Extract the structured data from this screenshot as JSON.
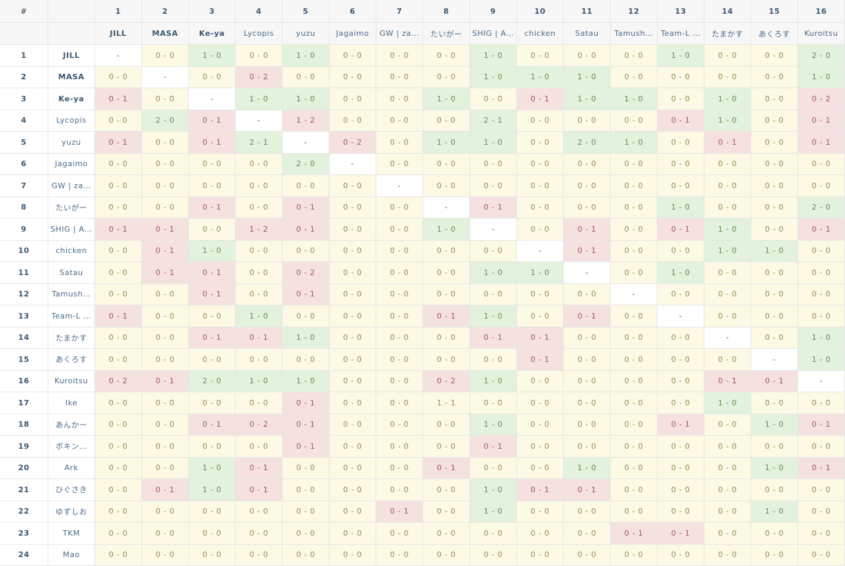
{
  "header": {
    "index": "#"
  },
  "columns": [
    {
      "number": "1",
      "name": "JILL"
    },
    {
      "number": "2",
      "name": "MASA"
    },
    {
      "number": "3",
      "name": "Ke-ya"
    },
    {
      "number": "4",
      "name": "Lycopis"
    },
    {
      "number": "5",
      "name": "yuzu"
    },
    {
      "number": "6",
      "name": "Jagaimo"
    },
    {
      "number": "7",
      "name": "GW | za…"
    },
    {
      "number": "8",
      "name": "たいがー"
    },
    {
      "number": "9",
      "name": "SHIG | A…"
    },
    {
      "number": "10",
      "name": "chicken"
    },
    {
      "number": "11",
      "name": "Satau"
    },
    {
      "number": "12",
      "name": "Tamush…"
    },
    {
      "number": "13",
      "name": "Team-L …"
    },
    {
      "number": "14",
      "name": "たまかす"
    },
    {
      "number": "15",
      "name": "あくろす"
    },
    {
      "number": "16",
      "name": "Kuroitsu"
    }
  ],
  "rows": [
    {
      "number": "1",
      "name": "JILL",
      "cells": [
        "-",
        "0 - 0",
        "1 - 0",
        "0 - 0",
        "1 - 0",
        "0 - 0",
        "0 - 0",
        "0 - 0",
        "1 - 0",
        "0 - 0",
        "0 - 0",
        "0 - 0",
        "1 - 0",
        "0 - 0",
        "0 - 0",
        "2 - 0"
      ]
    },
    {
      "number": "2",
      "name": "MASA",
      "cells": [
        "0 - 0",
        "-",
        "0 - 0",
        "0 - 2",
        "0 - 0",
        "0 - 0",
        "0 - 0",
        "0 - 0",
        "1 - 0",
        "1 - 0",
        "1 - 0",
        "0 - 0",
        "0 - 0",
        "0 - 0",
        "0 - 0",
        "1 - 0"
      ]
    },
    {
      "number": "3",
      "name": "Ke-ya",
      "cells": [
        "0 - 1",
        "0 - 0",
        "-",
        "1 - 0",
        "1 - 0",
        "0 - 0",
        "0 - 0",
        "1 - 0",
        "0 - 0",
        "0 - 1",
        "1 - 0",
        "1 - 0",
        "0 - 0",
        "1 - 0",
        "0 - 0",
        "0 - 2"
      ]
    },
    {
      "number": "4",
      "name": "Lycopis",
      "cells": [
        "0 - 0",
        "2 - 0",
        "0 - 1",
        "-",
        "1 - 2",
        "0 - 0",
        "0 - 0",
        "0 - 0",
        "2 - 1",
        "0 - 0",
        "0 - 0",
        "0 - 0",
        "0 - 1",
        "1 - 0",
        "0 - 0",
        "0 - 1"
      ]
    },
    {
      "number": "5",
      "name": "yuzu",
      "cells": [
        "0 - 1",
        "0 - 0",
        "0 - 1",
        "2 - 1",
        "-",
        "0 - 2",
        "0 - 0",
        "1 - 0",
        "1 - 0",
        "0 - 0",
        "2 - 0",
        "1 - 0",
        "0 - 0",
        "0 - 1",
        "0 - 0",
        "0 - 1"
      ]
    },
    {
      "number": "6",
      "name": "Jagaimo",
      "cells": [
        "0 - 0",
        "0 - 0",
        "0 - 0",
        "0 - 0",
        "2 - 0",
        "-",
        "0 - 0",
        "0 - 0",
        "0 - 0",
        "0 - 0",
        "0 - 0",
        "0 - 0",
        "0 - 0",
        "0 - 0",
        "0 - 0",
        "0 - 0"
      ]
    },
    {
      "number": "7",
      "name": "GW | za…",
      "cells": [
        "0 - 0",
        "0 - 0",
        "0 - 0",
        "0 - 0",
        "0 - 0",
        "0 - 0",
        "-",
        "0 - 0",
        "0 - 0",
        "0 - 0",
        "0 - 0",
        "0 - 0",
        "0 - 0",
        "0 - 0",
        "0 - 0",
        "0 - 0"
      ]
    },
    {
      "number": "8",
      "name": "たいがー",
      "cells": [
        "0 - 0",
        "0 - 0",
        "0 - 1",
        "0 - 0",
        "0 - 1",
        "0 - 0",
        "0 - 0",
        "-",
        "0 - 1",
        "0 - 0",
        "0 - 0",
        "0 - 0",
        "1 - 0",
        "0 - 0",
        "0 - 0",
        "2 - 0"
      ]
    },
    {
      "number": "9",
      "name": "SHIG | A…",
      "cells": [
        "0 - 1",
        "0 - 1",
        "0 - 0",
        "1 - 2",
        "0 - 1",
        "0 - 0",
        "0 - 0",
        "1 - 0",
        "-",
        "0 - 0",
        "0 - 1",
        "0 - 0",
        "0 - 1",
        "1 - 0",
        "0 - 0",
        "0 - 1"
      ]
    },
    {
      "number": "10",
      "name": "chicken",
      "cells": [
        "0 - 0",
        "0 - 1",
        "1 - 0",
        "0 - 0",
        "0 - 0",
        "0 - 0",
        "0 - 0",
        "0 - 0",
        "0 - 0",
        "-",
        "0 - 1",
        "0 - 0",
        "0 - 0",
        "1 - 0",
        "1 - 0",
        "0 - 0"
      ]
    },
    {
      "number": "11",
      "name": "Satau",
      "cells": [
        "0 - 0",
        "0 - 1",
        "0 - 1",
        "0 - 0",
        "0 - 2",
        "0 - 0",
        "0 - 0",
        "0 - 0",
        "1 - 0",
        "1 - 0",
        "-",
        "0 - 0",
        "1 - 0",
        "0 - 0",
        "0 - 0",
        "0 - 0"
      ]
    },
    {
      "number": "12",
      "name": "Tamush…",
      "cells": [
        "0 - 0",
        "0 - 0",
        "0 - 1",
        "0 - 0",
        "0 - 1",
        "0 - 0",
        "0 - 0",
        "0 - 0",
        "0 - 0",
        "0 - 0",
        "0 - 0",
        "-",
        "0 - 0",
        "0 - 0",
        "0 - 0",
        "0 - 0"
      ]
    },
    {
      "number": "13",
      "name": "Team-L …",
      "cells": [
        "0 - 1",
        "0 - 0",
        "0 - 0",
        "1 - 0",
        "0 - 0",
        "0 - 0",
        "0 - 0",
        "0 - 1",
        "1 - 0",
        "0 - 0",
        "0 - 1",
        "0 - 0",
        "-",
        "0 - 0",
        "0 - 0",
        "0 - 0"
      ]
    },
    {
      "number": "14",
      "name": "たまかす",
      "cells": [
        "0 - 0",
        "0 - 0",
        "0 - 1",
        "0 - 1",
        "1 - 0",
        "0 - 0",
        "0 - 0",
        "0 - 0",
        "0 - 1",
        "0 - 1",
        "0 - 0",
        "0 - 0",
        "0 - 0",
        "-",
        "0 - 0",
        "1 - 0"
      ]
    },
    {
      "number": "15",
      "name": "あくろす",
      "cells": [
        "0 - 0",
        "0 - 0",
        "0 - 0",
        "0 - 0",
        "0 - 0",
        "0 - 0",
        "0 - 0",
        "0 - 0",
        "0 - 0",
        "0 - 1",
        "0 - 0",
        "0 - 0",
        "0 - 0",
        "0 - 0",
        "-",
        "1 - 0"
      ]
    },
    {
      "number": "16",
      "name": "Kuroitsu",
      "cells": [
        "0 - 2",
        "0 - 1",
        "2 - 0",
        "1 - 0",
        "1 - 0",
        "0 - 0",
        "0 - 0",
        "0 - 2",
        "1 - 0",
        "0 - 0",
        "0 - 0",
        "0 - 0",
        "0 - 0",
        "0 - 1",
        "0 - 1",
        "-"
      ]
    },
    {
      "number": "17",
      "name": "Ike",
      "cells": [
        "0 - 0",
        "0 - 0",
        "0 - 0",
        "0 - 0",
        "0 - 1",
        "0 - 0",
        "0 - 0",
        "1 - 1",
        "0 - 0",
        "0 - 0",
        "0 - 0",
        "0 - 0",
        "0 - 0",
        "1 - 0",
        "0 - 0",
        "0 - 0"
      ]
    },
    {
      "number": "18",
      "name": "あんかー",
      "cells": [
        "0 - 0",
        "0 - 0",
        "0 - 1",
        "0 - 2",
        "0 - 1",
        "0 - 0",
        "0 - 0",
        "0 - 0",
        "1 - 0",
        "0 - 0",
        "0 - 0",
        "0 - 0",
        "0 - 1",
        "0 - 0",
        "1 - 0",
        "0 - 1"
      ]
    },
    {
      "number": "19",
      "name": "ボキン…",
      "cells": [
        "0 - 0",
        "0 - 0",
        "0 - 0",
        "0 - 0",
        "0 - 1",
        "0 - 0",
        "0 - 0",
        "0 - 0",
        "0 - 1",
        "0 - 0",
        "0 - 0",
        "0 - 0",
        "0 - 0",
        "0 - 0",
        "0 - 0",
        "0 - 0"
      ]
    },
    {
      "number": "20",
      "name": "Ark",
      "cells": [
        "0 - 0",
        "0 - 0",
        "1 - 0",
        "0 - 1",
        "0 - 0",
        "0 - 0",
        "0 - 0",
        "0 - 1",
        "0 - 0",
        "0 - 0",
        "1 - 0",
        "0 - 0",
        "0 - 0",
        "0 - 0",
        "1 - 0",
        "0 - 1"
      ]
    },
    {
      "number": "21",
      "name": "ひぐさき",
      "cells": [
        "0 - 0",
        "0 - 1",
        "1 - 0",
        "0 - 1",
        "0 - 0",
        "0 - 0",
        "0 - 0",
        "0 - 0",
        "1 - 0",
        "0 - 1",
        "0 - 1",
        "0 - 0",
        "0 - 0",
        "0 - 0",
        "0 - 0",
        "0 - 0"
      ]
    },
    {
      "number": "22",
      "name": "ゆずしお",
      "cells": [
        "0 - 0",
        "0 - 0",
        "0 - 0",
        "0 - 0",
        "0 - 0",
        "0 - 0",
        "0 - 1",
        "0 - 0",
        "1 - 0",
        "0 - 0",
        "0 - 0",
        "0 - 0",
        "0 - 0",
        "0 - 0",
        "1 - 0",
        "0 - 0"
      ]
    },
    {
      "number": "23",
      "name": "TKM",
      "cells": [
        "0 - 0",
        "0 - 0",
        "0 - 0",
        "0 - 0",
        "0 - 0",
        "0 - 0",
        "0 - 0",
        "0 - 0",
        "0 - 0",
        "0 - 0",
        "0 - 0",
        "0 - 1",
        "0 - 1",
        "0 - 0",
        "0 - 0",
        "0 - 0"
      ]
    },
    {
      "number": "24",
      "name": "Mao",
      "cells": [
        "0 - 0",
        "0 - 0",
        "0 - 0",
        "0 - 0",
        "0 - 0",
        "0 - 0",
        "0 - 0",
        "0 - 0",
        "0 - 0",
        "0 - 0",
        "0 - 0",
        "0 - 0",
        "0 - 0",
        "0 - 0",
        "0 - 0",
        "0 - 0"
      ]
    }
  ]
}
